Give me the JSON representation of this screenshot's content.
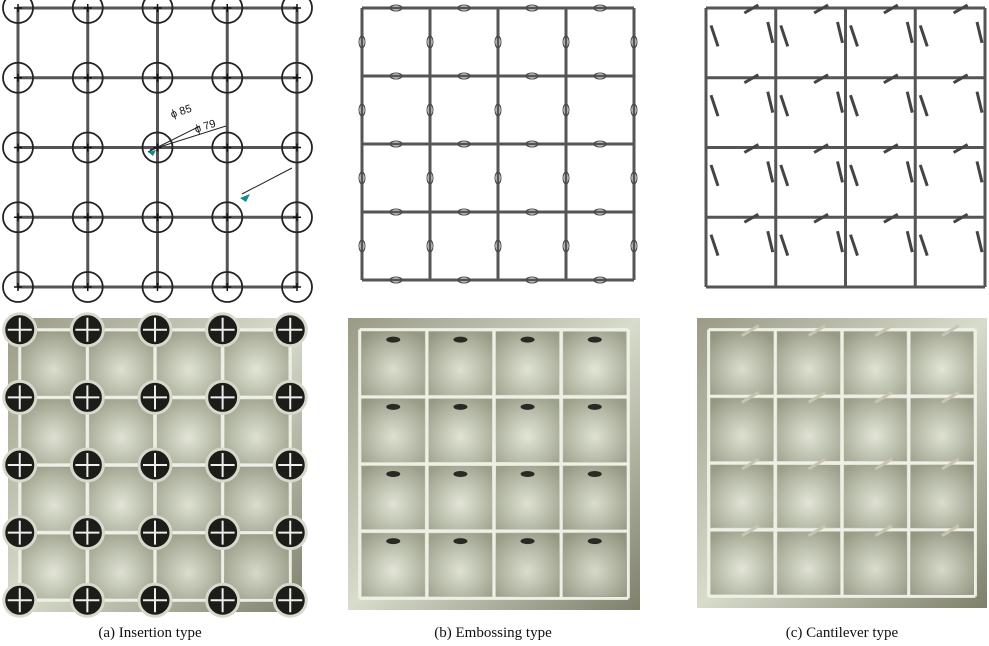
{
  "panels": [
    {
      "caption": "(a)  Insertion type",
      "dimensions": [
        "ϕ 85",
        "ϕ 79"
      ]
    },
    {
      "caption": "(b) Embossing type"
    },
    {
      "caption": "(c) Cantilever type"
    }
  ]
}
